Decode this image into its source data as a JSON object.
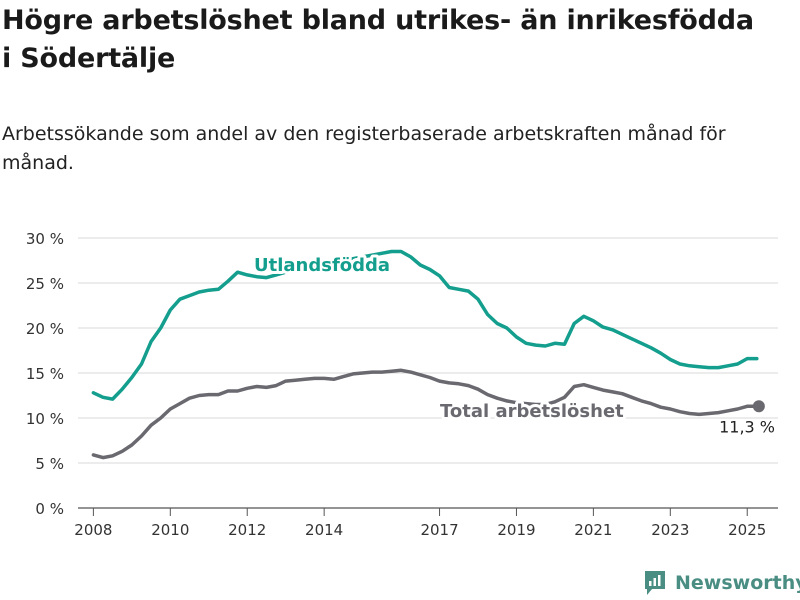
{
  "title": "Högre arbetslöshet bland utrikes- än inrikesfödda i Södertälje",
  "subtitle": "Arbetssökande som andel av den registerbaserade arbetskraften månad för månad.",
  "brand": {
    "name": "Newsworthy",
    "icon": "newsworthy-logo-icon",
    "color": "#4a8d83"
  },
  "chart_data": {
    "type": "line",
    "y_ticks": [
      0,
      5,
      10,
      15,
      20,
      25,
      30
    ],
    "y_tick_suffix": " %",
    "x_ticks": [
      "2008",
      "2010",
      "2012",
      "2014",
      "2017",
      "2019",
      "2021",
      "2023",
      "2025"
    ],
    "ylim": [
      0,
      30
    ],
    "grid": true,
    "series": [
      {
        "name": "Utlandsfödda",
        "color": "#139e8e",
        "points": [
          [
            "2008-01",
            12.8
          ],
          [
            "2008-04",
            12.3
          ],
          [
            "2008-07",
            12.1
          ],
          [
            "2008-10",
            13.2
          ],
          [
            "2009-01",
            14.5
          ],
          [
            "2009-04",
            16.0
          ],
          [
            "2009-07",
            18.5
          ],
          [
            "2009-10",
            20.0
          ],
          [
            "2010-01",
            22.0
          ],
          [
            "2010-04",
            23.2
          ],
          [
            "2010-07",
            23.6
          ],
          [
            "2010-10",
            24.0
          ],
          [
            "2011-01",
            24.2
          ],
          [
            "2011-04",
            24.3
          ],
          [
            "2011-07",
            25.2
          ],
          [
            "2011-10",
            26.2
          ],
          [
            "2012-01",
            25.9
          ],
          [
            "2012-04",
            25.7
          ],
          [
            "2012-07",
            25.6
          ],
          [
            "2012-10",
            25.9
          ],
          [
            "2013-01",
            26.2
          ],
          [
            "2013-04",
            26.4
          ],
          [
            "2013-07",
            26.6
          ],
          [
            "2013-10",
            26.8
          ],
          [
            "2014-01",
            27.0
          ],
          [
            "2014-04",
            27.3
          ],
          [
            "2014-07",
            27.5
          ],
          [
            "2014-10",
            27.7
          ],
          [
            "2015-01",
            27.9
          ],
          [
            "2015-04",
            28.1
          ],
          [
            "2015-07",
            28.3
          ],
          [
            "2015-10",
            28.5
          ],
          [
            "2016-01",
            28.5
          ],
          [
            "2016-04",
            27.9
          ],
          [
            "2016-07",
            27.0
          ],
          [
            "2016-10",
            26.5
          ],
          [
            "2017-01",
            25.8
          ],
          [
            "2017-04",
            24.5
          ],
          [
            "2017-07",
            24.3
          ],
          [
            "2017-10",
            24.1
          ],
          [
            "2018-01",
            23.2
          ],
          [
            "2018-04",
            21.5
          ],
          [
            "2018-07",
            20.5
          ],
          [
            "2018-10",
            20.0
          ],
          [
            "2019-01",
            19.0
          ],
          [
            "2019-04",
            18.3
          ],
          [
            "2019-07",
            18.1
          ],
          [
            "2019-10",
            18.0
          ],
          [
            "2020-01",
            18.3
          ],
          [
            "2020-04",
            18.2
          ],
          [
            "2020-07",
            20.5
          ],
          [
            "2020-10",
            21.3
          ],
          [
            "2021-01",
            20.8
          ],
          [
            "2021-04",
            20.1
          ],
          [
            "2021-07",
            19.8
          ],
          [
            "2021-10",
            19.3
          ],
          [
            "2022-01",
            18.8
          ],
          [
            "2022-04",
            18.3
          ],
          [
            "2022-07",
            17.8
          ],
          [
            "2022-10",
            17.2
          ],
          [
            "2023-01",
            16.5
          ],
          [
            "2023-04",
            16.0
          ],
          [
            "2023-07",
            15.8
          ],
          [
            "2023-10",
            15.7
          ],
          [
            "2024-01",
            15.6
          ],
          [
            "2024-04",
            15.6
          ],
          [
            "2024-07",
            15.8
          ],
          [
            "2024-10",
            16.0
          ],
          [
            "2025-01",
            16.6
          ],
          [
            "2025-04",
            16.6
          ]
        ]
      },
      {
        "name": "Total arbetslöshet",
        "color": "#6a6970",
        "end_label": "11,3 %",
        "points": [
          [
            "2008-01",
            5.9
          ],
          [
            "2008-04",
            5.6
          ],
          [
            "2008-07",
            5.8
          ],
          [
            "2008-10",
            6.3
          ],
          [
            "2009-01",
            7.0
          ],
          [
            "2009-04",
            8.0
          ],
          [
            "2009-07",
            9.2
          ],
          [
            "2009-10",
            10.0
          ],
          [
            "2010-01",
            11.0
          ],
          [
            "2010-04",
            11.6
          ],
          [
            "2010-07",
            12.2
          ],
          [
            "2010-10",
            12.5
          ],
          [
            "2011-01",
            12.6
          ],
          [
            "2011-04",
            12.6
          ],
          [
            "2011-07",
            13.0
          ],
          [
            "2011-10",
            13.0
          ],
          [
            "2012-01",
            13.3
          ],
          [
            "2012-04",
            13.5
          ],
          [
            "2012-07",
            13.4
          ],
          [
            "2012-10",
            13.6
          ],
          [
            "2013-01",
            14.1
          ],
          [
            "2013-04",
            14.2
          ],
          [
            "2013-07",
            14.3
          ],
          [
            "2013-10",
            14.4
          ],
          [
            "2014-01",
            14.4
          ],
          [
            "2014-04",
            14.3
          ],
          [
            "2014-07",
            14.6
          ],
          [
            "2014-10",
            14.9
          ],
          [
            "2015-01",
            15.0
          ],
          [
            "2015-04",
            15.1
          ],
          [
            "2015-07",
            15.1
          ],
          [
            "2015-10",
            15.2
          ],
          [
            "2016-01",
            15.3
          ],
          [
            "2016-04",
            15.1
          ],
          [
            "2016-07",
            14.8
          ],
          [
            "2016-10",
            14.5
          ],
          [
            "2017-01",
            14.1
          ],
          [
            "2017-04",
            13.9
          ],
          [
            "2017-07",
            13.8
          ],
          [
            "2017-10",
            13.6
          ],
          [
            "2018-01",
            13.2
          ],
          [
            "2018-04",
            12.6
          ],
          [
            "2018-07",
            12.2
          ],
          [
            "2018-10",
            11.9
          ],
          [
            "2019-01",
            11.7
          ],
          [
            "2019-04",
            11.6
          ],
          [
            "2019-07",
            11.5
          ],
          [
            "2019-10",
            11.5
          ],
          [
            "2020-01",
            11.8
          ],
          [
            "2020-04",
            12.3
          ],
          [
            "2020-07",
            13.5
          ],
          [
            "2020-10",
            13.7
          ],
          [
            "2021-01",
            13.4
          ],
          [
            "2021-04",
            13.1
          ],
          [
            "2021-07",
            12.9
          ],
          [
            "2021-10",
            12.7
          ],
          [
            "2022-01",
            12.3
          ],
          [
            "2022-04",
            11.9
          ],
          [
            "2022-07",
            11.6
          ],
          [
            "2022-10",
            11.2
          ],
          [
            "2023-01",
            11.0
          ],
          [
            "2023-04",
            10.7
          ],
          [
            "2023-07",
            10.5
          ],
          [
            "2023-10",
            10.4
          ],
          [
            "2024-01",
            10.5
          ],
          [
            "2024-04",
            10.6
          ],
          [
            "2024-07",
            10.8
          ],
          [
            "2024-10",
            11.0
          ],
          [
            "2025-01",
            11.3
          ],
          [
            "2025-04",
            11.3
          ]
        ]
      }
    ]
  }
}
